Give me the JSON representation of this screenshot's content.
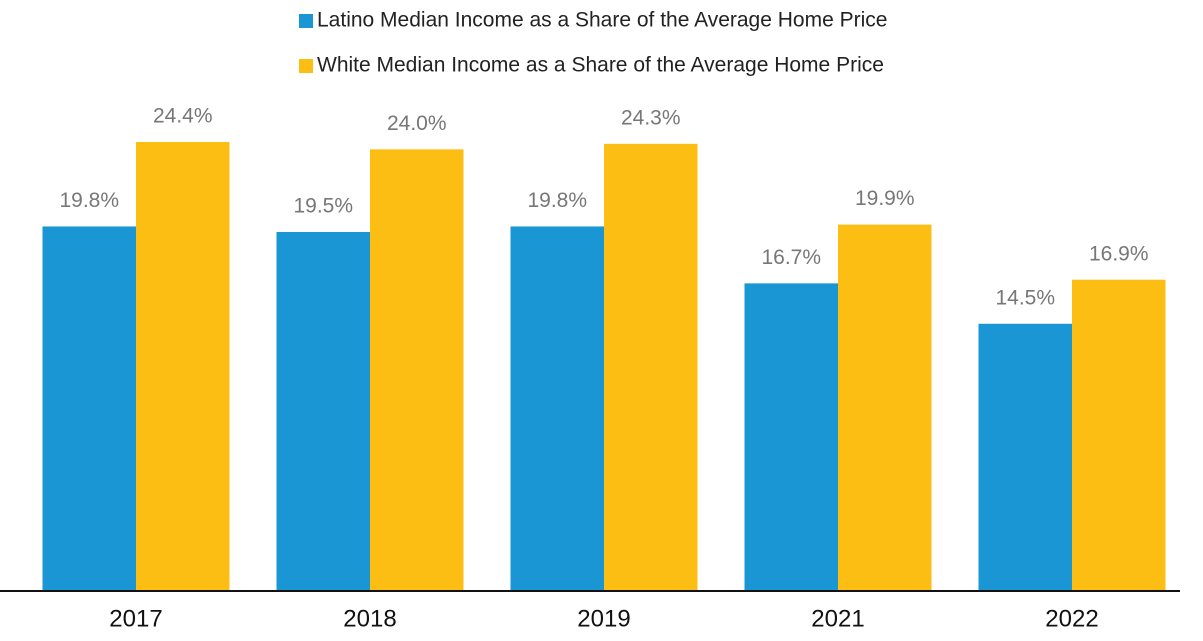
{
  "chart_data": {
    "type": "bar",
    "categories": [
      "2017",
      "2018",
      "2019",
      "2021",
      "2022"
    ],
    "series": [
      {
        "name": "Latino Median Income as a Share of the Average Home Price",
        "color": "#1a96d4",
        "values": [
          19.8,
          19.5,
          19.8,
          16.7,
          14.5
        ],
        "value_labels": [
          "19.8%",
          "19.5%",
          "19.8%",
          "16.7%",
          "14.5%"
        ]
      },
      {
        "name": "White Median Income as a Share of the Average Home Price",
        "color": "#fdbe14",
        "values": [
          24.4,
          24.0,
          24.3,
          19.9,
          16.9
        ],
        "value_labels": [
          "24.4%",
          "24.0%",
          "24.3%",
          "19.9%",
          "16.9%"
        ]
      }
    ],
    "legend": "top"
  }
}
